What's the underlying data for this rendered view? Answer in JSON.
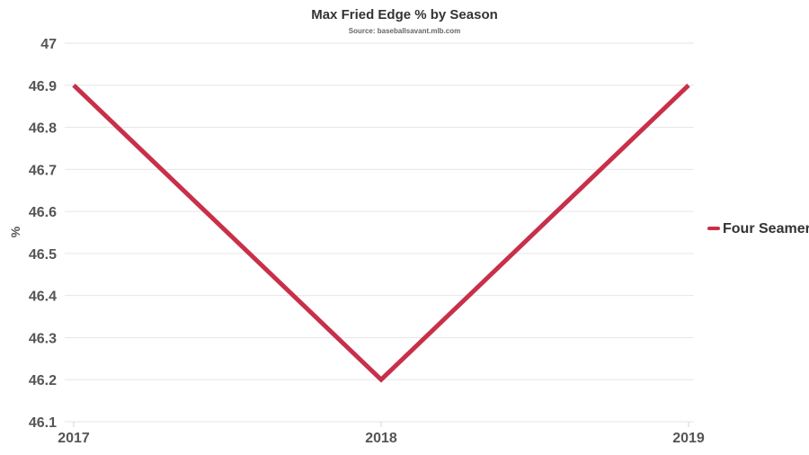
{
  "chart_data": {
    "type": "line",
    "title": "Max Fried Edge % by Season",
    "subtitle": "Source: baseballsavant.mlb.com",
    "xlabel": "",
    "ylabel": "%",
    "categories": [
      "2017",
      "2018",
      "2019"
    ],
    "series": [
      {
        "name": "Four Seamer",
        "values": [
          46.9,
          46.2,
          46.9
        ],
        "color": "#c8304a"
      }
    ],
    "ylim": [
      46.1,
      47
    ],
    "yticks": [
      "46.1",
      "46.2",
      "46.3",
      "46.4",
      "46.5",
      "46.6",
      "46.7",
      "46.8",
      "46.9",
      "47"
    ],
    "grid": true,
    "legend_position": "right"
  }
}
